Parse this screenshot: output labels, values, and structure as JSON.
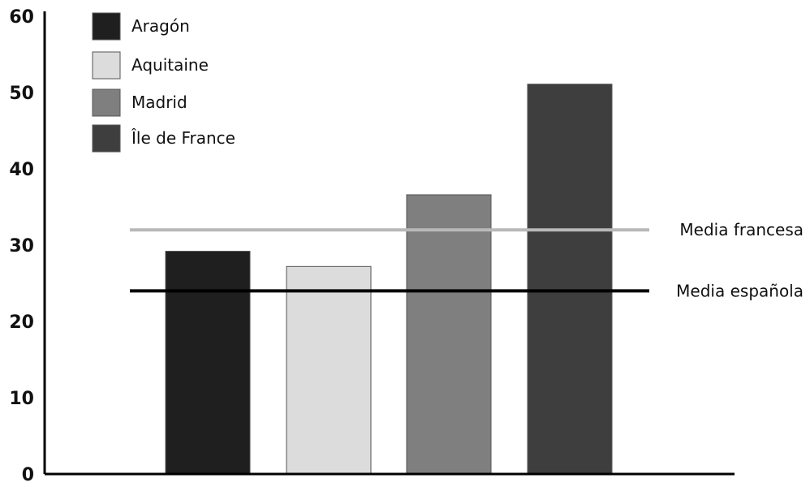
{
  "chart_data": {
    "type": "bar",
    "categories": [
      "Aragón",
      "Aquitaine",
      "Madrid",
      "Île de France"
    ],
    "values": [
      29.2,
      27.2,
      36.6,
      51.1
    ],
    "colors": [
      "#1f1f1f",
      "#dcdcdc",
      "#7f7f7f",
      "#3e3e3e"
    ],
    "ylim": [
      0,
      60
    ],
    "yticks": [
      "0",
      "10",
      "20",
      "30",
      "40",
      "50",
      "60"
    ],
    "yticks_values": [
      0,
      10,
      20,
      30,
      40,
      50,
      60
    ],
    "legend": {
      "placement": "top-left",
      "entries": [
        "Aragón",
        "Aquitaine",
        "Madrid",
        "Île de France"
      ]
    },
    "reference_lines": [
      {
        "label": "Media francesa",
        "value": 32.0,
        "color": "#b8b8b8"
      },
      {
        "label": "Media española",
        "value": 24.0,
        "color": "#000000"
      }
    ],
    "grid": false
  }
}
